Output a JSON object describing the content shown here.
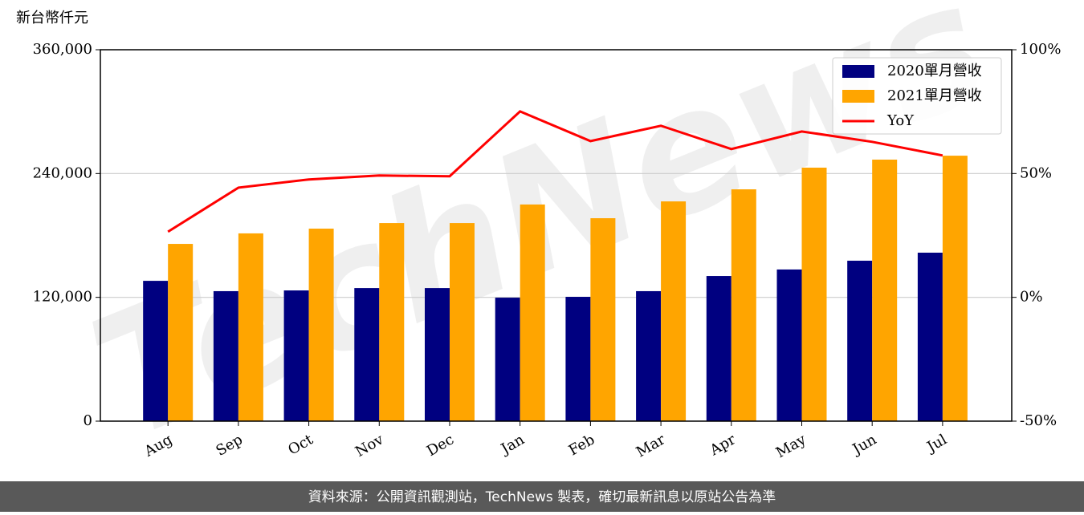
{
  "chart_data": {
    "type": "bar-line",
    "y_label": "新台幣仟元",
    "categories": [
      "Aug",
      "Sep",
      "Oct",
      "Nov",
      "Dec",
      "Jan",
      "Feb",
      "Mar",
      "Apr",
      "May",
      "Jun",
      "Jul"
    ],
    "series": [
      {
        "name": "2020單月營收",
        "type": "bar",
        "color": "#000080",
        "values": [
          136000,
          126000,
          126700,
          129000,
          129000,
          119700,
          120500,
          126000,
          140700,
          147000,
          155500,
          163300
        ]
      },
      {
        "name": "2021單月營收",
        "type": "bar",
        "color": "#ffa500",
        "values": [
          171800,
          182000,
          186600,
          192000,
          192000,
          210000,
          196700,
          213000,
          224700,
          245700,
          253500,
          257300
        ]
      },
      {
        "name": "YoY",
        "type": "line",
        "axis": "y2",
        "color": "#ff0000",
        "values": [
          26.5,
          44.3,
          47.6,
          49.2,
          48.9,
          75.1,
          63.1,
          69.3,
          59.9,
          67.0,
          62.8,
          57.3
        ]
      }
    ],
    "ylim": [
      0,
      360000
    ],
    "yticks": [
      0,
      {
        "value": 120000,
        "label": "120,000"
      },
      {
        "value": 240000,
        "label": "240,000"
      },
      {
        "value": 360000,
        "label": "360,000"
      }
    ],
    "y2lim": [
      -50,
      100
    ],
    "y2ticks": [
      {
        "value": -50,
        "label": "-50%"
      },
      {
        "value": 0,
        "label": "0%"
      },
      {
        "value": 50,
        "label": "50%"
      },
      {
        "value": 100,
        "label": "100%"
      }
    ],
    "grid": true,
    "legend": "upper right",
    "watermark": "TechNews",
    "footer": "資料來源：公開資訊觀測站，TechNews 製表，確切最新訊息以原站公告為準"
  }
}
